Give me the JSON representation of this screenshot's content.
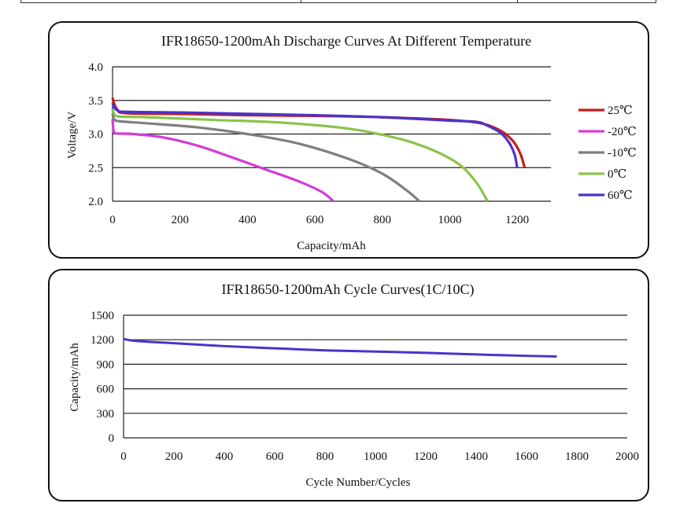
{
  "chart_data": [
    {
      "type": "line",
      "title": "IFR18650-1200mAh Discharge Curves At Different  Temperature",
      "xlabel": "Capacity/mAh",
      "ylabel": "Voltage/V",
      "xlim": [
        0,
        1300
      ],
      "ylim": [
        2.0,
        4.0
      ],
      "xticks": [
        "0",
        "200",
        "400",
        "600",
        "800",
        "1000",
        "1200"
      ],
      "yticks": [
        "4.0",
        "3.5",
        "3.0",
        "2.5",
        "2.0"
      ],
      "grid": "horizontal",
      "legend_position": "right",
      "series": [
        {
          "name": "25℃",
          "color": "#cc1a1a",
          "points": [
            [
              0,
              3.54
            ],
            [
              5,
              3.45
            ],
            [
              15,
              3.36
            ],
            [
              40,
              3.31
            ],
            [
              200,
              3.3
            ],
            [
              400,
              3.28
            ],
            [
              600,
              3.27
            ],
            [
              800,
              3.25
            ],
            [
              1000,
              3.21
            ],
            [
              1080,
              3.17
            ],
            [
              1120,
              3.12
            ],
            [
              1160,
              3.02
            ],
            [
              1190,
              2.88
            ],
            [
              1210,
              2.7
            ],
            [
              1222,
              2.5
            ]
          ]
        },
        {
          "name": "-20℃",
          "color": "#d63ad6",
          "points": [
            [
              0,
              3.22
            ],
            [
              3,
              3.05
            ],
            [
              10,
              3.01
            ],
            [
              60,
              3.0
            ],
            [
              150,
              2.95
            ],
            [
              250,
              2.83
            ],
            [
              350,
              2.66
            ],
            [
              450,
              2.48
            ],
            [
              550,
              2.3
            ],
            [
              620,
              2.14
            ],
            [
              655,
              2.0
            ]
          ]
        },
        {
          "name": "-10℃",
          "color": "#7f7f7f",
          "points": [
            [
              0,
              3.3
            ],
            [
              5,
              3.22
            ],
            [
              20,
              3.19
            ],
            [
              100,
              3.16
            ],
            [
              250,
              3.1
            ],
            [
              400,
              3.0
            ],
            [
              550,
              2.86
            ],
            [
              700,
              2.63
            ],
            [
              800,
              2.41
            ],
            [
              870,
              2.17
            ],
            [
              910,
              2.0
            ]
          ]
        },
        {
          "name": "0℃",
          "color": "#8bc34a",
          "points": [
            [
              0,
              3.37
            ],
            [
              5,
              3.3
            ],
            [
              20,
              3.26
            ],
            [
              100,
              3.25
            ],
            [
              300,
              3.21
            ],
            [
              500,
              3.17
            ],
            [
              700,
              3.08
            ],
            [
              850,
              2.93
            ],
            [
              950,
              2.76
            ],
            [
              1030,
              2.54
            ],
            [
              1080,
              2.27
            ],
            [
              1112,
              2.0
            ]
          ]
        },
        {
          "name": "60℃",
          "color": "#4a33cc",
          "points": [
            [
              0,
              3.46
            ],
            [
              5,
              3.4
            ],
            [
              15,
              3.35
            ],
            [
              40,
              3.33
            ],
            [
              200,
              3.32
            ],
            [
              400,
              3.3
            ],
            [
              600,
              3.28
            ],
            [
              800,
              3.25
            ],
            [
              1000,
              3.2
            ],
            [
              1080,
              3.18
            ],
            [
              1110,
              3.13
            ],
            [
              1150,
              3.02
            ],
            [
              1175,
              2.88
            ],
            [
              1192,
              2.7
            ],
            [
              1200,
              2.5
            ]
          ]
        }
      ]
    },
    {
      "type": "line",
      "title": "IFR18650-1200mAh  Cycle Curves(1C/10C)",
      "xlabel": "Cycle Number/Cycles",
      "ylabel": "Capacity/mAh",
      "xlim": [
        0,
        2000
      ],
      "ylim": [
        0,
        1500
      ],
      "xticks": [
        "0",
        "200",
        "400",
        "600",
        "800",
        "1000",
        "1200",
        "1400",
        "1600",
        "1800",
        "2000"
      ],
      "yticks": [
        "1500",
        "1200",
        "900",
        "600",
        "300",
        "0"
      ],
      "grid": "horizontal",
      "series": [
        {
          "name": "1C/10C",
          "color": "#4a33cc",
          "points": [
            [
              0,
              1210
            ],
            [
              50,
              1185
            ],
            [
              200,
              1158
            ],
            [
              400,
              1122
            ],
            [
              600,
              1095
            ],
            [
              800,
              1070
            ],
            [
              1000,
              1055
            ],
            [
              1200,
              1040
            ],
            [
              1400,
              1020
            ],
            [
              1600,
              1003
            ],
            [
              1720,
              995
            ]
          ]
        }
      ]
    }
  ]
}
